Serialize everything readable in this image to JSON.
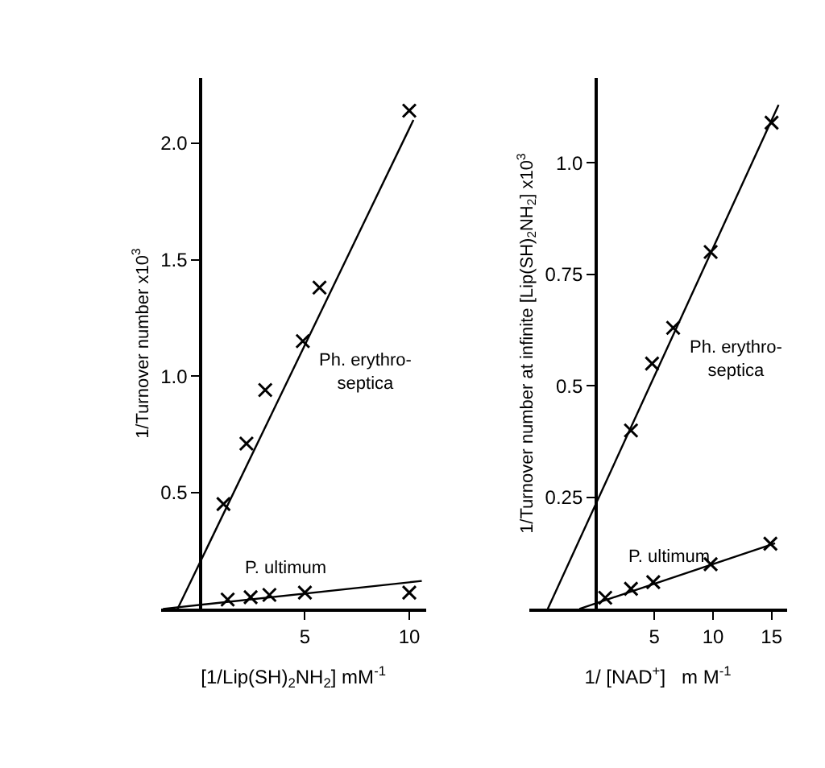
{
  "chart_data": [
    {
      "type": "scatter",
      "xlabel": "[1/Lip(SH)$_{2}$NH$_{2}$] mM$^{-1}$",
      "ylabel": "1/Turnover number x10$^{3}$",
      "xlim": [
        -1.9,
        10.8
      ],
      "ylim": [
        0,
        2.28
      ],
      "xticks": [
        5,
        10
      ],
      "yticks": [
        {
          "value": 0.5,
          "label": "0.5"
        },
        {
          "value": 1.0,
          "label": "1.0"
        },
        {
          "value": 1.5,
          "label": "1.5"
        },
        {
          "value": 2.0,
          "label": "2.0"
        }
      ],
      "grid": false,
      "legend": false,
      "series": [
        {
          "name": "Ph. erythro-septica",
          "marker": "cross",
          "color": "#000000",
          "x": [
            1.1,
            2.2,
            3.1,
            4.9,
            5.7,
            10.0
          ],
          "values": [
            0.45,
            0.71,
            0.94,
            1.15,
            1.38,
            2.14
          ]
        },
        {
          "type": "line",
          "color": "#000000",
          "x": [
            -1.1,
            10.2
          ],
          "values": [
            0,
            2.1
          ]
        },
        {
          "name": "P. ultimum",
          "marker": "cross",
          "color": "#000000",
          "x": [
            1.3,
            2.4,
            3.3,
            5.0,
            10.0
          ],
          "values": [
            0.04,
            0.05,
            0.06,
            0.07,
            0.07
          ]
        },
        {
          "type": "line",
          "color": "#000000",
          "x": [
            -1.8,
            10.6
          ],
          "values": [
            0,
            0.12
          ]
        }
      ]
    },
    {
      "type": "scatter",
      "xlabel": "1/ [NAD$^{+}$]   m M$^{-1}$",
      "ylabel": "1/Turnover number at infinite [Lip(SH)$_{2}$NH$_{2}$] x10$^{3}$",
      "xlim": [
        -5.7,
        16.3
      ],
      "ylim": [
        0,
        1.19
      ],
      "xticks": [
        5,
        10,
        15
      ],
      "yticks": [
        {
          "value": 0.25,
          "label": "0.25"
        },
        {
          "value": 0.5,
          "label": "0.5"
        },
        {
          "value": 0.75,
          "label": "0.75"
        },
        {
          "value": 1.0,
          "label": "1.0"
        }
      ],
      "grid": false,
      "legend": false,
      "series": [
        {
          "name": "Ph. erythro-septica",
          "marker": "cross",
          "color": "#000000",
          "x": [
            3.0,
            4.8,
            6.6,
            9.8,
            15.0
          ],
          "values": [
            0.4,
            0.55,
            0.63,
            0.8,
            1.09
          ]
        },
        {
          "type": "line",
          "color": "#000000",
          "x": [
            -4.1,
            15.6
          ],
          "values": [
            0,
            1.13
          ]
        },
        {
          "name": "P. ultimum",
          "marker": "cross",
          "color": "#000000",
          "x": [
            0.8,
            3.0,
            4.9,
            9.8,
            14.9
          ],
          "values": [
            0.025,
            0.045,
            0.06,
            0.1,
            0.146
          ]
        },
        {
          "type": "line",
          "color": "#000000",
          "x": [
            -1.4,
            15.3
          ],
          "values": [
            0,
            0.147
          ]
        }
      ]
    }
  ]
}
